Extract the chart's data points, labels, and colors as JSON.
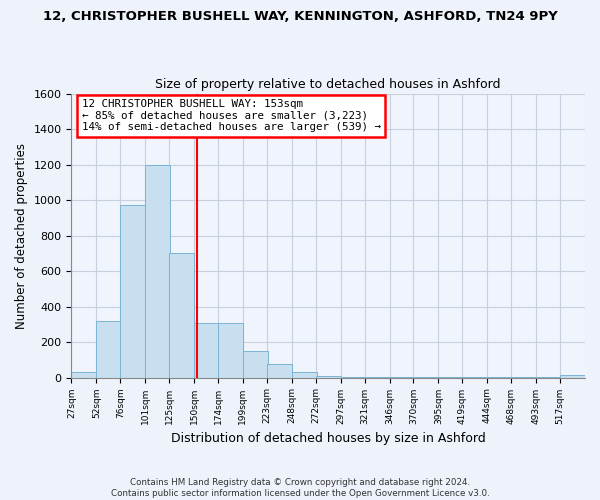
{
  "title1": "12, CHRISTOPHER BUSHELL WAY, KENNINGTON, ASHFORD, TN24 9PY",
  "title2": "Size of property relative to detached houses in Ashford",
  "xlabel": "Distribution of detached houses by size in Ashford",
  "ylabel": "Number of detached properties",
  "bar_color": "#c8dff0",
  "bar_edge_color": "#7ab4d4",
  "bins": [
    27,
    52,
    76,
    101,
    125,
    150,
    174,
    199,
    223,
    248,
    272,
    297,
    321,
    346,
    370,
    395,
    419,
    444,
    468,
    493,
    517
  ],
  "bin_width": 25,
  "heights": [
    30,
    320,
    970,
    1200,
    700,
    310,
    310,
    150,
    75,
    30,
    10,
    5,
    3,
    2,
    1,
    1,
    1,
    1,
    1,
    1,
    15
  ],
  "tick_labels": [
    "27sqm",
    "52sqm",
    "76sqm",
    "101sqm",
    "125sqm",
    "150sqm",
    "174sqm",
    "199sqm",
    "223sqm",
    "248sqm",
    "272sqm",
    "297sqm",
    "321sqm",
    "346sqm",
    "370sqm",
    "395sqm",
    "419sqm",
    "444sqm",
    "468sqm",
    "493sqm",
    "517sqm"
  ],
  "vline_x": 153,
  "vline_color": "red",
  "annotation_line1": "12 CHRISTOPHER BUSHELL WAY: 153sqm",
  "annotation_line2": "← 85% of detached houses are smaller (3,223)",
  "annotation_line3": "14% of semi-detached houses are larger (539) →",
  "ylim": [
    0,
    1600
  ],
  "yticks": [
    0,
    200,
    400,
    600,
    800,
    1000,
    1200,
    1400,
    1600
  ],
  "footer_text": "Contains HM Land Registry data © Crown copyright and database right 2024.\nContains public sector information licensed under the Open Government Licence v3.0.",
  "bg_color": "#eef2fa",
  "plot_bg_color": "#f0f4fc",
  "grid_color": "#c8d0e0"
}
